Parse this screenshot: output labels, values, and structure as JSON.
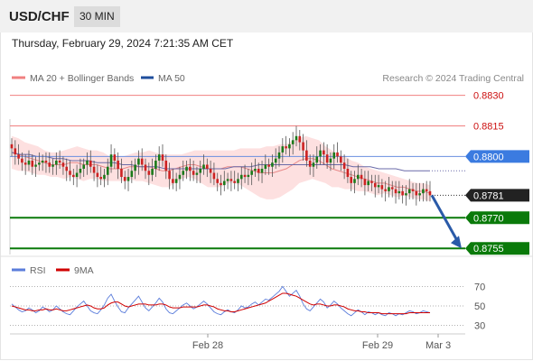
{
  "header": {
    "symbol": "USD/CHF",
    "timeframe": "30 MIN",
    "timestamp": "Thursday, February 29, 2024 7:21:35 AM CET"
  },
  "legend": {
    "ma20_label": "MA 20 + Bollinger Bands",
    "ma50_label": "MA 50",
    "ma20_color": "#f08080",
    "ma50_color": "#1f4e9c",
    "copyright": "Research © 2024 Trading Central"
  },
  "rsi_legend": {
    "rsi_label": "RSI",
    "ma_label": "9MA",
    "rsi_color": "#5b7ddb",
    "ma_color": "#d00000"
  },
  "colors": {
    "up_candle": "#1a7a1a",
    "down_candle": "#cc2222",
    "band_fill": "#fde0e0",
    "support": "#0a7a0a",
    "resistance": "#f08080",
    "pivot": "#3b7be0",
    "arrow": "#2a5aa8"
  },
  "chart_data": [
    {
      "type": "candlestick",
      "ylim": [
        0.8752,
        0.8836
      ],
      "x_tick_labels": [
        "Feb 28",
        "Feb 29",
        "Mar 3"
      ],
      "levels": [
        {
          "label": "0.8830",
          "value": 0.883,
          "kind": "resistance"
        },
        {
          "label": "0.8815",
          "value": 0.8815,
          "kind": "resistance"
        },
        {
          "label": "0.8800",
          "value": 0.88,
          "kind": "pivot"
        },
        {
          "label": "0.8781",
          "value": 0.8781,
          "kind": "last"
        },
        {
          "label": "0.8770",
          "value": 0.877,
          "kind": "support"
        },
        {
          "label": "0.8755",
          "value": 0.8755,
          "kind": "support"
        }
      ],
      "close_series": [
        0.8804,
        0.8801,
        0.8799,
        0.8797,
        0.8796,
        0.8798,
        0.8795,
        0.8796,
        0.8797,
        0.8798,
        0.8797,
        0.8795,
        0.8796,
        0.8798,
        0.8797,
        0.8795,
        0.8793,
        0.8791,
        0.879,
        0.8792,
        0.8794,
        0.8796,
        0.8798,
        0.8795,
        0.8792,
        0.879,
        0.8789,
        0.8791,
        0.8795,
        0.8801,
        0.8798,
        0.8794,
        0.879,
        0.8788,
        0.879,
        0.8793,
        0.8796,
        0.8799,
        0.8796,
        0.8793,
        0.8791,
        0.8794,
        0.8798,
        0.8801,
        0.8798,
        0.8793,
        0.8789,
        0.8787,
        0.8789,
        0.8791,
        0.8793,
        0.8795,
        0.8793,
        0.8791,
        0.8792,
        0.8794,
        0.8796,
        0.8794,
        0.8792,
        0.8789,
        0.8787,
        0.8786,
        0.8788,
        0.8789,
        0.8788,
        0.8787,
        0.8789,
        0.8791,
        0.879,
        0.8791,
        0.8793,
        0.8794,
        0.8792,
        0.8794,
        0.8796,
        0.8795,
        0.8797,
        0.8799,
        0.8802,
        0.8805,
        0.8804,
        0.8806,
        0.8808,
        0.881,
        0.8807,
        0.8803,
        0.8798,
        0.8795,
        0.8797,
        0.88,
        0.8803,
        0.8801,
        0.8797,
        0.8799,
        0.8802,
        0.88,
        0.8797,
        0.8794,
        0.879,
        0.8787,
        0.8789,
        0.8791,
        0.8789,
        0.8786,
        0.8788,
        0.8787,
        0.8785,
        0.8786,
        0.8784,
        0.8783,
        0.8785,
        0.8784,
        0.8782,
        0.8783,
        0.8781,
        0.8782,
        0.8784,
        0.8783,
        0.8781,
        0.8782,
        0.8784,
        0.8783,
        0.8781
      ],
      "ma20_series": [
        0.8802,
        0.8801,
        0.88,
        0.8799,
        0.8798,
        0.8797,
        0.8796,
        0.8796,
        0.8796,
        0.8797,
        0.8797,
        0.8796,
        0.8796,
        0.8796,
        0.8795,
        0.8794,
        0.8794,
        0.8794,
        0.8795,
        0.8795,
        0.8795,
        0.8795,
        0.8794,
        0.8793,
        0.8793,
        0.8794,
        0.8795,
        0.8796,
        0.8796,
        0.8795,
        0.8794,
        0.8794,
        0.8794,
        0.8795,
        0.8795,
        0.8795,
        0.8794,
        0.8793,
        0.8792,
        0.8792,
        0.8792,
        0.8793,
        0.8794,
        0.8796,
        0.8798,
        0.8799,
        0.8799,
        0.8798,
        0.8796,
        0.8794,
        0.8793,
        0.8792,
        0.8791,
        0.879,
        0.8789,
        0.8788,
        0.8787,
        0.8787,
        0.8786,
        0.8785,
        0.8785,
        0.8784,
        0.8783,
        0.8783,
        0.8782
      ],
      "ma50_series": [
        0.8802,
        0.8801,
        0.8801,
        0.88,
        0.88,
        0.8799,
        0.8799,
        0.8798,
        0.8798,
        0.8798,
        0.8797,
        0.8797,
        0.8797,
        0.8796,
        0.8796,
        0.8795,
        0.8795,
        0.8795,
        0.8794,
        0.8794,
        0.8794,
        0.8794,
        0.8794,
        0.8794,
        0.8794,
        0.8794,
        0.8795,
        0.8795,
        0.8795,
        0.8796,
        0.8796,
        0.8796,
        0.8796,
        0.8796,
        0.8796,
        0.8796,
        0.8796,
        0.8796,
        0.8796,
        0.8796,
        0.8795,
        0.8795,
        0.8795,
        0.8794,
        0.8794,
        0.8794,
        0.8793,
        0.8793,
        0.8793,
        0.8793
      ],
      "forecast": {
        "from": 0.8781,
        "to": 0.8755
      }
    },
    {
      "type": "line",
      "ylim": [
        25,
        75
      ],
      "y_tick_labels": [
        "70",
        "50",
        "30"
      ],
      "y_ticks": [
        70,
        50,
        30
      ],
      "rsi_series": [
        52,
        49,
        46,
        44,
        45,
        48,
        46,
        43,
        45,
        49,
        47,
        44,
        46,
        50,
        47,
        44,
        42,
        41,
        45,
        49,
        52,
        55,
        50,
        45,
        43,
        42,
        46,
        51,
        58,
        62,
        55,
        49,
        44,
        43,
        48,
        52,
        56,
        60,
        54,
        48,
        45,
        49,
        53,
        58,
        54,
        47,
        43,
        42,
        45,
        48,
        51,
        53,
        50,
        47,
        49,
        52,
        55,
        52,
        48,
        44,
        42,
        41,
        44,
        46,
        44,
        43,
        46,
        50,
        48,
        49,
        52,
        54,
        51,
        54,
        57,
        56,
        59,
        62,
        65,
        70,
        65,
        60,
        63,
        66,
        60,
        52,
        47,
        45,
        49,
        53,
        57,
        54,
        48,
        51,
        55,
        52,
        48,
        45,
        42,
        40,
        43,
        46,
        44,
        41,
        44,
        43,
        41,
        43,
        41,
        40,
        43,
        42,
        40,
        42,
        41,
        43,
        45,
        44,
        42,
        43,
        45,
        44,
        43
      ],
      "ma9_series": [
        50,
        49,
        48,
        47,
        46,
        46,
        45,
        45,
        46,
        46,
        47,
        46,
        46,
        47,
        46,
        45,
        45,
        46,
        47,
        48,
        49,
        50,
        51,
        50,
        48,
        47,
        47,
        48,
        51,
        53,
        54,
        54,
        52,
        50,
        49,
        50,
        51,
        52,
        52,
        52,
        51,
        51,
        51,
        52,
        52,
        51,
        49,
        48,
        48,
        48,
        49,
        49,
        49,
        49,
        49,
        50,
        51,
        51,
        50,
        49,
        47,
        46,
        45,
        45,
        44,
        44,
        45,
        46,
        47,
        48,
        49,
        50,
        51,
        52,
        53,
        55,
        57,
        59,
        61,
        63,
        63,
        62,
        61,
        60,
        58,
        56,
        54,
        52,
        51,
        52,
        52,
        51,
        50,
        50,
        51,
        51,
        50,
        49,
        47,
        46,
        45,
        45,
        44,
        44,
        43,
        43,
        43,
        43,
        42,
        42,
        42,
        42,
        42,
        42,
        42,
        42,
        43,
        43,
        43,
        43,
        43,
        43,
        43
      ]
    }
  ]
}
